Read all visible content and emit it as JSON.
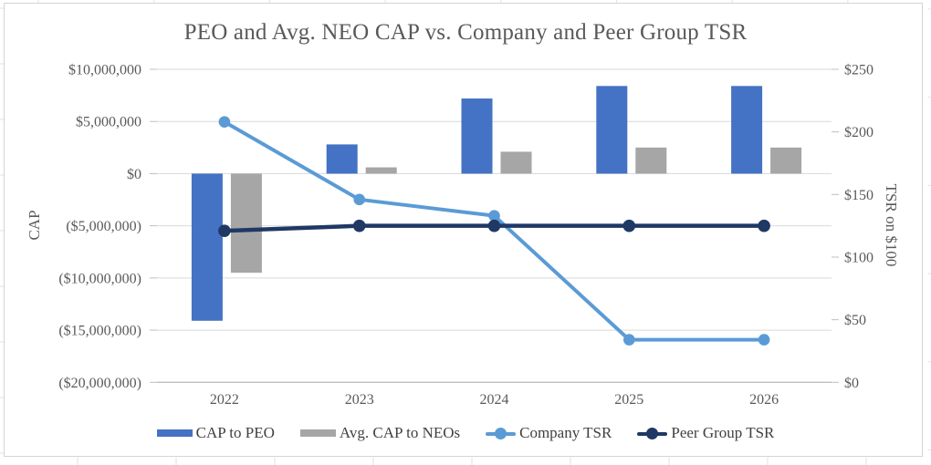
{
  "title": "PEO and Avg. NEO CAP vs. Company and Peer Group TSR",
  "chart_data": {
    "type": "combo-bar-line",
    "title": "PEO and Avg. NEO CAP vs. Company and Peer Group TSR",
    "categories": [
      "2022",
      "2023",
      "2024",
      "2025",
      "2026"
    ],
    "series": [
      {
        "name": "CAP to PEO",
        "type": "bar",
        "axis": "left",
        "color": "#4472C4",
        "values": [
          -14100000,
          2800000,
          7200000,
          8400000,
          8400000
        ]
      },
      {
        "name": "Avg. CAP to NEOs",
        "type": "bar",
        "axis": "left",
        "color": "#A6A6A6",
        "values": [
          -9500000,
          600000,
          2100000,
          2500000,
          2500000
        ]
      },
      {
        "name": "Company TSR",
        "type": "line",
        "axis": "right",
        "color": "#5B9BD5",
        "values": [
          208,
          146,
          133,
          34,
          34
        ]
      },
      {
        "name": "Peer Group TSR",
        "type": "line",
        "axis": "right",
        "color": "#1F3864",
        "values": [
          121,
          125,
          125,
          125,
          125
        ]
      }
    ],
    "left_axis": {
      "title": "CAP",
      "range": [
        -20000000,
        10000000
      ],
      "ticks": [
        {
          "label": "$10,000,000",
          "value": 10000000
        },
        {
          "label": "$5,000,000",
          "value": 5000000
        },
        {
          "label": "$0",
          "value": 0
        },
        {
          "label": "($5,000,000)",
          "value": -5000000
        },
        {
          "label": "($10,000,000)",
          "value": -10000000
        },
        {
          "label": "($15,000,000)",
          "value": -15000000
        },
        {
          "label": "($20,000,000)",
          "value": -20000000
        }
      ]
    },
    "right_axis": {
      "title": "TSR on $100",
      "range": [
        0,
        250
      ],
      "ticks": [
        {
          "label": "$250",
          "value": 250
        },
        {
          "label": "$200",
          "value": 200
        },
        {
          "label": "$150",
          "value": 150
        },
        {
          "label": "$100",
          "value": 100
        },
        {
          "label": "$50",
          "value": 50
        },
        {
          "label": "$0",
          "value": 0
        }
      ]
    },
    "legend_position": "bottom",
    "grid": true,
    "colors": {
      "gridline": "#D9D9D9",
      "axis_line": "#BFBFBF",
      "tick_text": "#595959",
      "title_text": "#595959",
      "legend_text": "#404040",
      "edge_gridline": "#E2E2E2"
    }
  }
}
